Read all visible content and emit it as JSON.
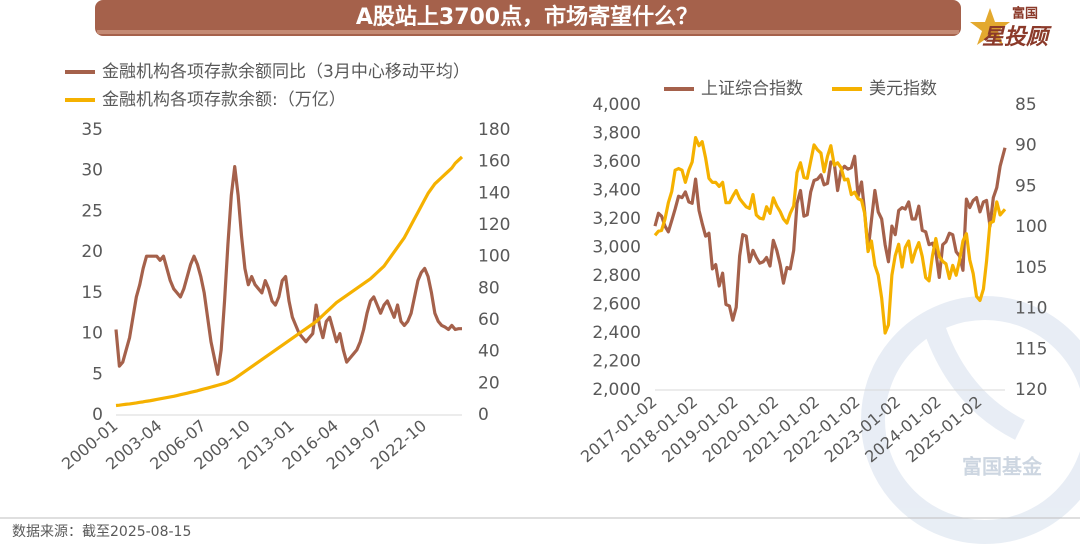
{
  "title": "A股站上3700点，市场寄望什么？",
  "brand": {
    "small": "富国",
    "large": "星投顾"
  },
  "watermark": "富国基金",
  "source": "数据来源：截至2025-08-15",
  "chart_data": [
    {
      "type": "line",
      "legend": "top-left",
      "x": [
        "2000-01",
        "2000-04",
        "2000-07",
        "2000-10",
        "2001-01",
        "2001-04",
        "2001-07",
        "2001-10",
        "2002-01",
        "2002-04",
        "2002-07",
        "2002-10",
        "2003-01",
        "2003-04",
        "2003-07",
        "2003-10",
        "2004-01",
        "2004-04",
        "2004-07",
        "2004-10",
        "2005-01",
        "2005-04",
        "2005-07",
        "2005-10",
        "2006-01",
        "2006-04",
        "2006-07",
        "2006-10",
        "2007-01",
        "2007-04",
        "2007-07",
        "2007-10",
        "2008-01",
        "2008-04",
        "2008-07",
        "2008-10",
        "2009-01",
        "2009-04",
        "2009-07",
        "2009-10",
        "2010-01",
        "2010-04",
        "2010-07",
        "2010-10",
        "2011-01",
        "2011-04",
        "2011-07",
        "2011-10",
        "2012-01",
        "2012-04",
        "2012-07",
        "2012-10",
        "2013-01",
        "2013-04",
        "2013-07",
        "2013-10",
        "2014-01",
        "2014-04",
        "2014-07",
        "2014-10",
        "2015-01",
        "2015-04",
        "2015-07",
        "2015-10",
        "2016-01",
        "2016-04",
        "2016-07",
        "2016-10",
        "2017-01",
        "2017-04",
        "2017-07",
        "2017-10",
        "2018-01",
        "2018-04",
        "2018-07",
        "2018-10",
        "2019-01",
        "2019-04",
        "2019-07",
        "2019-10",
        "2020-01",
        "2020-04",
        "2020-07",
        "2020-10",
        "2021-01",
        "2021-04",
        "2021-07",
        "2021-10",
        "2022-01",
        "2022-04",
        "2022-07",
        "2022-10",
        "2023-01",
        "2023-04",
        "2023-07",
        "2023-10",
        "2024-01",
        "2024-04",
        "2024-07",
        "2024-10",
        "2025-01",
        "2025-04",
        "2025-07"
      ],
      "xticks": [
        "2000-01",
        "2003-04",
        "2006-07",
        "2009-10",
        "2013-01",
        "2016-04",
        "2019-07",
        "2022-10"
      ],
      "ylim": [
        0,
        35
      ],
      "yticks": [
        0,
        5,
        10,
        15,
        20,
        25,
        30,
        35
      ],
      "y2lim": [
        0,
        180
      ],
      "y2ticks": [
        0,
        20,
        40,
        60,
        80,
        100,
        120,
        140,
        160,
        180
      ],
      "series": [
        {
          "name": "金融机构各项存款余额同比（3月中心移动平均）",
          "color": "#a5614b",
          "values": [
            10.5,
            6,
            6.5,
            8,
            9.5,
            12,
            14.5,
            16,
            18,
            19.5,
            19.5,
            19.5,
            19.5,
            19,
            19.5,
            18,
            16.5,
            15.5,
            15,
            14.5,
            15.5,
            17,
            18.5,
            19.5,
            18.5,
            17,
            15,
            12,
            9,
            7,
            5,
            8,
            14,
            21,
            27,
            30.5,
            27,
            22,
            18,
            16,
            17,
            16,
            15.5,
            15,
            16.5,
            15.5,
            14,
            13.5,
            14.5,
            16.5,
            17,
            14,
            12,
            11,
            10,
            9.5,
            9,
            9.5,
            10,
            13.5,
            11,
            9.5,
            11.5,
            12,
            10.5,
            9,
            10,
            8,
            6.5,
            7,
            7.5,
            8,
            9,
            10.5,
            12.5,
            14,
            14.5,
            13.5,
            12.5,
            13.5,
            14,
            13,
            12,
            13.5,
            11.5,
            11,
            11.5,
            12.5,
            14.5,
            16.5,
            17.5,
            18,
            17,
            15,
            12.5,
            11.5,
            11,
            10.8,
            10.5,
            11,
            10.5,
            10.6,
            10.6
          ]
        },
        {
          "name": "金融机构各项存款余额:（万亿）",
          "color": "#f5b100",
          "axis": "y2",
          "values": [
            6,
            6.2,
            6.5,
            6.8,
            7,
            7.3,
            7.6,
            8,
            8.3,
            8.7,
            9,
            9.4,
            9.8,
            10.2,
            10.6,
            11,
            11.4,
            11.8,
            12.3,
            12.8,
            13.3,
            13.8,
            14.3,
            14.8,
            15.3,
            15.9,
            16.5,
            17,
            17.6,
            18.2,
            18.8,
            19.4,
            20,
            20.8,
            21.8,
            23,
            24.5,
            26,
            27.5,
            29,
            30.5,
            32,
            33.5,
            35,
            36.5,
            38,
            39.5,
            41,
            42.5,
            44,
            45.5,
            47,
            48.5,
            50,
            51.5,
            53,
            54.5,
            56,
            57.5,
            59,
            61,
            63,
            65,
            67,
            69,
            71,
            72.5,
            74,
            75.5,
            77,
            78.5,
            80,
            81.5,
            83,
            84.5,
            86,
            88,
            90,
            92,
            94,
            97,
            100,
            103,
            106,
            109,
            112,
            116,
            120,
            124,
            128,
            132,
            136,
            140,
            143,
            146,
            148,
            150,
            152,
            154,
            156,
            159,
            161,
            163
          ]
        }
      ]
    },
    {
      "type": "line",
      "legend": "top",
      "x": [
        "2017-01-02",
        "2017-02-02",
        "2017-03-02",
        "2017-04-02",
        "2017-05-02",
        "2017-06-02",
        "2017-07-02",
        "2017-08-02",
        "2017-09-02",
        "2017-10-02",
        "2017-11-02",
        "2017-12-02",
        "2018-01-02",
        "2018-02-02",
        "2018-03-02",
        "2018-04-02",
        "2018-05-02",
        "2018-06-02",
        "2018-07-02",
        "2018-08-02",
        "2018-09-02",
        "2018-10-02",
        "2018-11-02",
        "2018-12-02",
        "2019-01-02",
        "2019-02-02",
        "2019-03-02",
        "2019-04-02",
        "2019-05-02",
        "2019-06-02",
        "2019-07-02",
        "2019-08-02",
        "2019-09-02",
        "2019-10-02",
        "2019-11-02",
        "2019-12-02",
        "2020-01-02",
        "2020-02-02",
        "2020-03-02",
        "2020-04-02",
        "2020-05-02",
        "2020-06-02",
        "2020-07-02",
        "2020-08-02",
        "2020-09-02",
        "2020-10-02",
        "2020-11-02",
        "2020-12-02",
        "2021-01-02",
        "2021-02-02",
        "2021-03-02",
        "2021-04-02",
        "2021-05-02",
        "2021-06-02",
        "2021-07-02",
        "2021-08-02",
        "2021-09-02",
        "2021-10-02",
        "2021-11-02",
        "2021-12-02",
        "2022-01-02",
        "2022-02-02",
        "2022-03-02",
        "2022-04-02",
        "2022-05-02",
        "2022-06-02",
        "2022-07-02",
        "2022-08-02",
        "2022-09-02",
        "2022-10-02",
        "2022-11-02",
        "2022-12-02",
        "2023-01-02",
        "2023-02-02",
        "2023-03-02",
        "2023-04-02",
        "2023-05-02",
        "2023-06-02",
        "2023-07-02",
        "2023-08-02",
        "2023-09-02",
        "2023-10-02",
        "2023-11-02",
        "2023-12-02",
        "2024-01-02",
        "2024-02-02",
        "2024-03-02",
        "2024-04-02",
        "2024-05-02",
        "2024-06-02",
        "2024-07-02",
        "2024-08-02",
        "2024-09-02",
        "2024-10-02",
        "2024-11-02",
        "2024-12-02",
        "2025-01-02",
        "2025-02-02",
        "2025-03-02",
        "2025-04-02",
        "2025-05-02",
        "2025-06-02",
        "2025-07-02",
        "2025-08-15"
      ],
      "xlim": [
        "2017-01-02",
        "2025-08-15"
      ],
      "xticks": [
        "2017-01-02",
        "2018-01-02",
        "2019-01-02",
        "2020-01-02",
        "2021-01-02",
        "2022-01-02",
        "2023-01-02",
        "2024-01-02",
        "2025-01-02"
      ],
      "ylim": [
        2000,
        4000
      ],
      "yticks": [
        {
          "value": 2000,
          "label": "2,000"
        },
        {
          "value": 2200,
          "label": "2,200"
        },
        {
          "value": 2400,
          "label": "2,400"
        },
        {
          "value": 2600,
          "label": "2,600"
        },
        {
          "value": 2800,
          "label": "2,800"
        },
        {
          "value": 3000,
          "label": "3,000"
        },
        {
          "value": 3200,
          "label": "3,200"
        },
        {
          "value": 3400,
          "label": "3,400"
        },
        {
          "value": 3600,
          "label": "3,600"
        },
        {
          "value": 3800,
          "label": "3,800"
        },
        {
          "value": 4000,
          "label": "4,000"
        }
      ],
      "y2lim": [
        85,
        120
      ],
      "y2_inverted": true,
      "y2ticks": [
        85,
        90,
        95,
        100,
        105,
        110,
        115,
        120
      ],
      "series": [
        {
          "name": "上证综合指数",
          "color": "#a5614b",
          "values": [
            3150,
            3240,
            3220,
            3150,
            3110,
            3190,
            3270,
            3360,
            3350,
            3390,
            3320,
            3310,
            3480,
            3260,
            3170,
            3080,
            3100,
            2850,
            2880,
            2730,
            2820,
            2600,
            2590,
            2490,
            2580,
            2940,
            3090,
            3080,
            2900,
            2980,
            2930,
            2890,
            2900,
            2930,
            2870,
            3050,
            2980,
            2880,
            2750,
            2860,
            2850,
            2980,
            3310,
            3400,
            3220,
            3230,
            3390,
            3470,
            3480,
            3510,
            3440,
            3450,
            3600,
            3590,
            3400,
            3540,
            3570,
            3550,
            3560,
            3640,
            3360,
            3460,
            3250,
            2980,
            3190,
            3400,
            3250,
            3200,
            3020,
            2900,
            3150,
            3090,
            3260,
            3280,
            3270,
            3320,
            3200,
            3200,
            3290,
            3120,
            3110,
            3020,
            3030,
            2970,
            2790,
            3020,
            3040,
            3100,
            3090,
            2970,
            2940,
            2840,
            3340,
            3280,
            3330,
            3350,
            3250,
            3320,
            3330,
            3150,
            3350,
            3420,
            3570,
            3700
          ]
        },
        {
          "name": "美元指数",
          "color": "#f5b100",
          "axis": "y2",
          "values": [
            101,
            100.5,
            100.4,
            99,
            97,
            95.6,
            93,
            92.8,
            93,
            94.5,
            93,
            92,
            89,
            90,
            89.5,
            91.5,
            94,
            94.5,
            94.5,
            95,
            94.5,
            97,
            97,
            96.2,
            95.5,
            96.5,
            97,
            97.5,
            97.7,
            96,
            98.5,
            98.9,
            99,
            97.5,
            98.3,
            96.4,
            97.4,
            98.1,
            99,
            99.5,
            98.3,
            97.4,
            93.3,
            92.1,
            93.9,
            94,
            91.9,
            89.9,
            90.5,
            90.9,
            93.2,
            91.3,
            90,
            92.4,
            92.1,
            92.7,
            94.2,
            94.1,
            96,
            95.7,
            96.5,
            96.7,
            98.3,
            103,
            101.7,
            104.7,
            105.9,
            108.7,
            113,
            112,
            105.9,
            103.5,
            102.1,
            104.9,
            102.5,
            101.7,
            104.3,
            102.9,
            101.9,
            103.6,
            106.2,
            106.6,
            103.5,
            101.4,
            103.6,
            104.2,
            104.5,
            106.3,
            104.7,
            105.9,
            104.1,
            101.7,
            100.8,
            104,
            105.7,
            108.5,
            109,
            107.6,
            104.2,
            99.5,
            99.3,
            96.9,
            98.5,
            97.8
          ]
        }
      ]
    }
  ]
}
